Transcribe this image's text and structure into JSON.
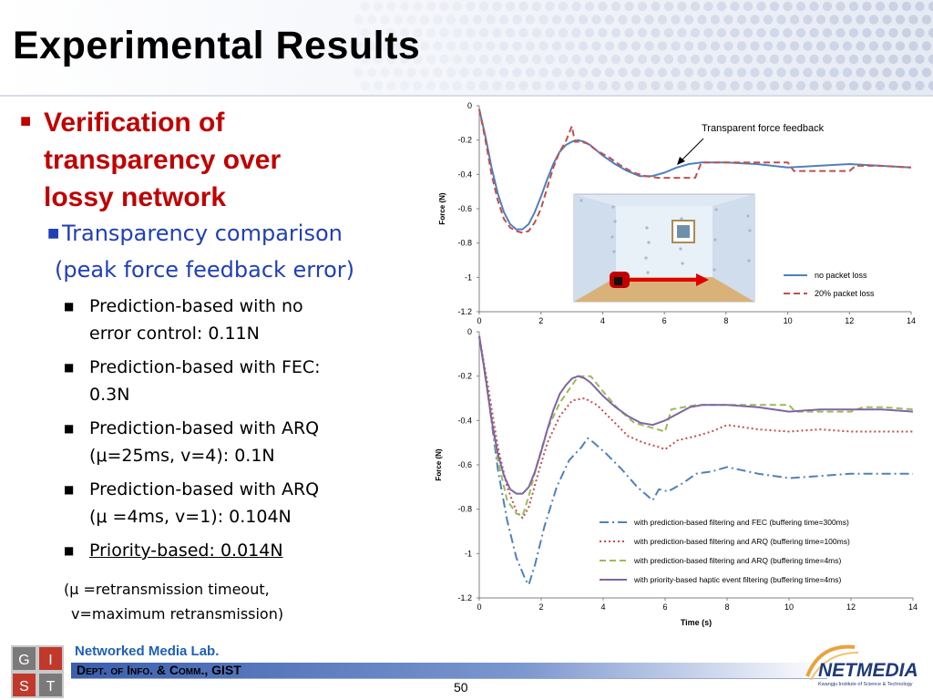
{
  "slide": {
    "title": "Experimental Results",
    "bullet1": [
      "Verification of",
      "transparency over",
      "lossy network"
    ],
    "bullet2": "Transparency comparison",
    "bullet2b": "(peak force feedback error)",
    "items": [
      {
        "lines": [
          "Prediction-based with no",
          "error control: 0.11N"
        ],
        "underline": false
      },
      {
        "lines": [
          "Prediction-based with FEC:",
          "0.3N"
        ],
        "underline": false
      },
      {
        "lines": [
          "Prediction-based with ARQ",
          "(μ=25ms, v=4): 0.1N"
        ],
        "underline": false
      },
      {
        "lines": [
          "Prediction-based with ARQ",
          "(μ =4ms, v=1): 0.104N"
        ],
        "underline": false
      },
      {
        "lines": [
          "Priority-based: 0.014N"
        ],
        "underline": true
      }
    ],
    "note_line1": "(μ =retransmission timeout,",
    "note_line2": "v=maximum retransmission)",
    "lab_name": "Networked Media Lab.",
    "dept_name": "Dept. of Info. & Comm., GIST",
    "page_number": "50",
    "gist_logo_letters": [
      "G",
      "I",
      "S",
      "T"
    ],
    "netmedia_logo": "NETMEDIA",
    "netmedia_caption": "Kwangju Institute of Science & Technology"
  },
  "colors": {
    "title_red": "#c00000",
    "sub_blue": "#1f3fb8",
    "series_blue": "#4f81bd",
    "series_red": "#c0504d",
    "series_green": "#9bbb59",
    "series_purple": "#8064a2"
  },
  "chart_data": [
    {
      "type": "line",
      "ylabel": "Force (N)",
      "xlim": [
        0,
        14
      ],
      "ylim": [
        -1.2,
        0
      ],
      "xticks": [
        0,
        2,
        4,
        6,
        8,
        10,
        12,
        14
      ],
      "yticks": [
        0,
        -0.2,
        -0.4,
        -0.6,
        -0.8,
        -1,
        -1.2
      ],
      "annotation": "Transparent force feedback",
      "legend_position": "bottom-right",
      "series": [
        {
          "name": "no packet loss",
          "color": "#4f81bd",
          "dash": "solid",
          "x": [
            0,
            0.2,
            0.4,
            0.6,
            0.8,
            1.0,
            1.2,
            1.4,
            1.6,
            1.8,
            2.0,
            2.2,
            2.4,
            2.6,
            2.8,
            3.0,
            3.2,
            3.4,
            3.6,
            3.8,
            4.0,
            4.4,
            4.8,
            5.2,
            5.6,
            6.0,
            6.4,
            6.8,
            7.2,
            8,
            9,
            10,
            11,
            12,
            13,
            14
          ],
          "y": [
            -0.02,
            -0.18,
            -0.36,
            -0.51,
            -0.62,
            -0.69,
            -0.72,
            -0.72,
            -0.69,
            -0.62,
            -0.53,
            -0.43,
            -0.34,
            -0.27,
            -0.23,
            -0.21,
            -0.2,
            -0.21,
            -0.23,
            -0.26,
            -0.29,
            -0.34,
            -0.38,
            -0.41,
            -0.41,
            -0.39,
            -0.36,
            -0.34,
            -0.33,
            -0.33,
            -0.34,
            -0.36,
            -0.35,
            -0.34,
            -0.35,
            -0.36
          ]
        },
        {
          "name": "20% packet loss",
          "color": "#c0504d",
          "dash": "dashed",
          "x": [
            0,
            0.2,
            0.4,
            0.6,
            0.8,
            1.0,
            1.2,
            1.4,
            1.6,
            1.8,
            2.0,
            2.2,
            2.4,
            2.6,
            2.8,
            3.0,
            3.1,
            3.3,
            3.5,
            3.8,
            4.2,
            4.6,
            5.0,
            5.4,
            5.8,
            6.2,
            6.6,
            7.0,
            7.2,
            8,
            9,
            10,
            10.2,
            11,
            12,
            12.2,
            13,
            14
          ],
          "y": [
            -0.02,
            -0.2,
            -0.4,
            -0.55,
            -0.66,
            -0.71,
            -0.73,
            -0.74,
            -0.73,
            -0.68,
            -0.6,
            -0.48,
            -0.36,
            -0.27,
            -0.21,
            -0.12,
            -0.21,
            -0.21,
            -0.22,
            -0.26,
            -0.3,
            -0.35,
            -0.39,
            -0.41,
            -0.42,
            -0.42,
            -0.42,
            -0.42,
            -0.33,
            -0.33,
            -0.33,
            -0.33,
            -0.38,
            -0.38,
            -0.38,
            -0.35,
            -0.35,
            -0.36
          ]
        }
      ]
    },
    {
      "type": "line",
      "xlabel": "Time (s)",
      "ylabel": "Force (N)",
      "xlim": [
        0,
        14
      ],
      "ylim": [
        -1.2,
        0
      ],
      "xticks": [
        0,
        2,
        4,
        6,
        8,
        10,
        12,
        14
      ],
      "yticks": [
        0,
        -0.2,
        -0.4,
        -0.6,
        -0.8,
        -1,
        -1.2
      ],
      "legend_position": "bottom-right",
      "series": [
        {
          "name": "with prediction-based filtering and FEC (buffering time=300ms)",
          "color": "#4f81bd",
          "dash": "dashdot",
          "x": [
            0,
            0.3,
            0.6,
            0.9,
            1.2,
            1.5,
            1.6,
            1.8,
            2.1,
            2.5,
            2.9,
            3.3,
            3.5,
            3.7,
            4.1,
            4.6,
            5.1,
            5.6,
            5.8,
            6.1,
            6.6,
            7.0,
            7.5,
            8.0,
            9,
            10,
            11,
            12,
            13,
            14
          ],
          "y": [
            -0.02,
            -0.3,
            -0.62,
            -0.85,
            -1.02,
            -1.12,
            -1.14,
            -1.05,
            -0.88,
            -0.7,
            -0.58,
            -0.52,
            -0.48,
            -0.5,
            -0.55,
            -0.62,
            -0.7,
            -0.76,
            -0.71,
            -0.72,
            -0.68,
            -0.64,
            -0.63,
            -0.61,
            -0.64,
            -0.66,
            -0.65,
            -0.64,
            -0.64,
            -0.64
          ]
        },
        {
          "name": "with prediction-based filtering and ARQ (buffering time=100ms)",
          "color": "#c0504d",
          "dash": "dotted",
          "x": [
            0,
            0.3,
            0.6,
            0.9,
            1.2,
            1.4,
            1.6,
            1.9,
            2.2,
            2.6,
            3.0,
            3.4,
            3.8,
            4.3,
            4.8,
            5.3,
            5.8,
            6.0,
            6.4,
            7.0,
            7.5,
            8.0,
            9,
            10,
            11,
            12,
            13,
            14
          ],
          "y": [
            -0.02,
            -0.26,
            -0.52,
            -0.7,
            -0.81,
            -0.84,
            -0.79,
            -0.64,
            -0.5,
            -0.38,
            -0.31,
            -0.3,
            -0.33,
            -0.4,
            -0.47,
            -0.5,
            -0.52,
            -0.53,
            -0.49,
            -0.47,
            -0.45,
            -0.42,
            -0.44,
            -0.45,
            -0.44,
            -0.45,
            -0.45,
            -0.45
          ]
        },
        {
          "name": "with prediction-based filtering and ARQ (buffering time=4ms)",
          "color": "#9bbb59",
          "dash": "dashed",
          "x": [
            0,
            0.3,
            0.6,
            0.9,
            1.2,
            1.4,
            1.6,
            1.9,
            2.2,
            2.6,
            3.0,
            3.2,
            3.6,
            4.0,
            4.5,
            5.0,
            5.5,
            6.0,
            6.2,
            7.0,
            7.5,
            8.0,
            9,
            10,
            10.2,
            11,
            12,
            12.4,
            13,
            14
          ],
          "y": [
            -0.02,
            -0.3,
            -0.58,
            -0.76,
            -0.82,
            -0.83,
            -0.74,
            -0.58,
            -0.44,
            -0.32,
            -0.24,
            -0.2,
            -0.2,
            -0.27,
            -0.35,
            -0.41,
            -0.43,
            -0.45,
            -0.35,
            -0.33,
            -0.33,
            -0.33,
            -0.33,
            -0.33,
            -0.36,
            -0.36,
            -0.36,
            -0.34,
            -0.34,
            -0.35
          ]
        },
        {
          "name": "with priority-based haptic event filtering (buffering time=4ms)",
          "color": "#8064a2",
          "dash": "solid",
          "x": [
            0,
            0.2,
            0.4,
            0.6,
            0.8,
            1.0,
            1.2,
            1.4,
            1.6,
            1.8,
            2.0,
            2.2,
            2.4,
            2.6,
            2.8,
            3.0,
            3.2,
            3.4,
            3.6,
            3.8,
            4.0,
            4.4,
            4.8,
            5.2,
            5.6,
            6.0,
            6.4,
            6.8,
            7.2,
            8,
            9,
            10,
            11,
            12,
            13,
            14
          ],
          "y": [
            -0.02,
            -0.2,
            -0.4,
            -0.55,
            -0.65,
            -0.71,
            -0.73,
            -0.73,
            -0.7,
            -0.63,
            -0.54,
            -0.44,
            -0.35,
            -0.28,
            -0.24,
            -0.21,
            -0.2,
            -0.21,
            -0.23,
            -0.26,
            -0.29,
            -0.34,
            -0.38,
            -0.41,
            -0.42,
            -0.4,
            -0.37,
            -0.34,
            -0.33,
            -0.33,
            -0.34,
            -0.36,
            -0.35,
            -0.35,
            -0.35,
            -0.36
          ]
        }
      ]
    }
  ]
}
